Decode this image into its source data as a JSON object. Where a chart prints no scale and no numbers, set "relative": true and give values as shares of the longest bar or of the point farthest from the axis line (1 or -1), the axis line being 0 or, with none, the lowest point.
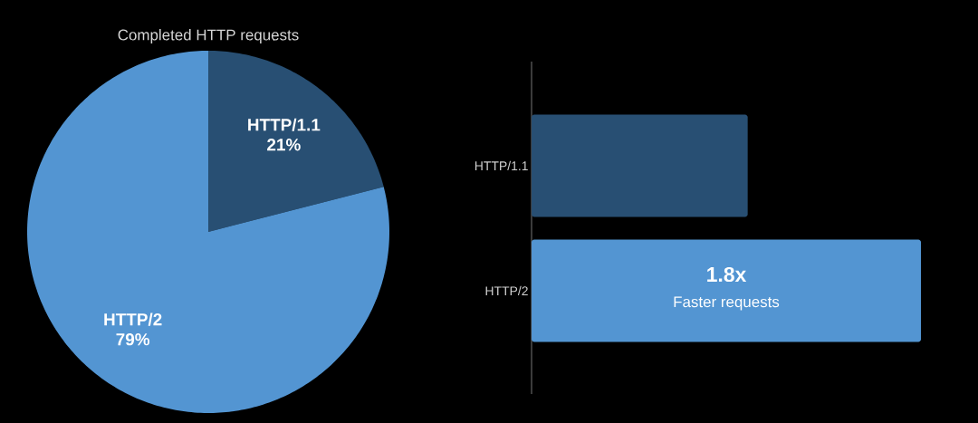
{
  "chart_data": [
    {
      "type": "pie",
      "title": "Completed HTTP requests",
      "categories": [
        "HTTP/1.1",
        "HTTP/2"
      ],
      "values": [
        21,
        79
      ],
      "colors": [
        "#284f73",
        "#5395d2"
      ],
      "value_labels": [
        "21%",
        "79%"
      ]
    },
    {
      "type": "bar",
      "orientation": "horizontal",
      "relative": true,
      "categories": [
        "HTTP/1.1",
        "HTTP/2"
      ],
      "values": [
        0.555,
        1
      ],
      "colors": [
        "#284f73",
        "#5395d2"
      ],
      "annotations": [
        "1.8x",
        "Faster requests"
      ]
    }
  ]
}
